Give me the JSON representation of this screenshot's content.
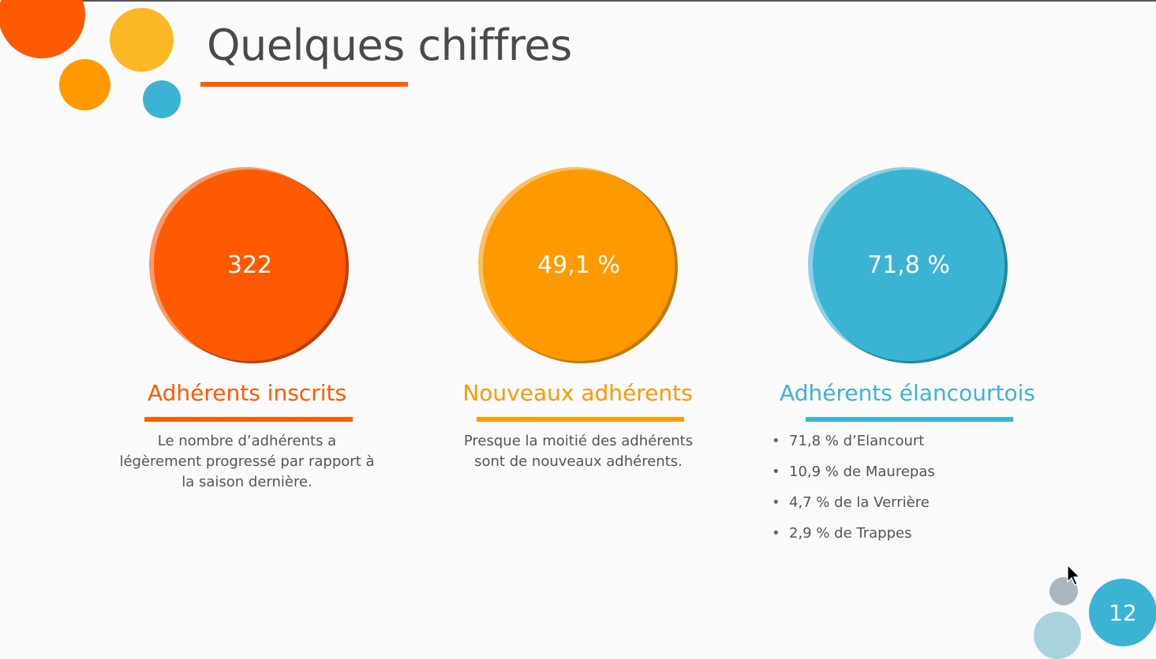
{
  "slide": {
    "title": "Quelques chiffres",
    "page_number": "12"
  },
  "colors": {
    "red_orange": "#ff5a00",
    "orange": "#ff9900",
    "yellow": "#fbb724",
    "blue": "#3bb4d4",
    "grey": "#aab7bf",
    "light_blue": "#a8d3dd"
  },
  "stats": [
    {
      "value": "322",
      "heading": "Adhérents inscrits",
      "description": "Le nombre d’adhérents a légèrement progressé par rapport à la saison dernière."
    },
    {
      "value": "49,1 %",
      "heading": "Nouveaux adhérents",
      "description": "Presque la moitié des adhérents sont de nouveaux adhérents."
    },
    {
      "value": "71,8 %",
      "heading": "Adhérents élancourtois",
      "bullets": [
        "71,8 % d’Elancourt",
        "10,9 % de Maurepas",
        "4,7 % de la Verrière",
        "2,9 % de Trappes"
      ]
    }
  ],
  "icons": {
    "bullet": "•",
    "cursor": "mouse-pointer-icon"
  }
}
